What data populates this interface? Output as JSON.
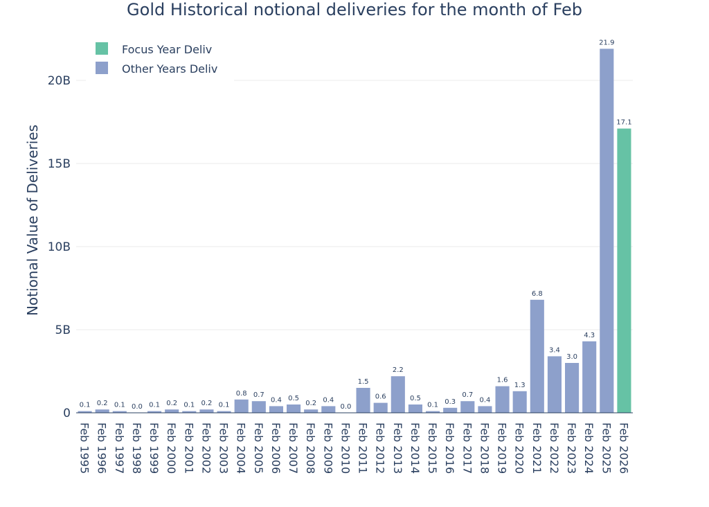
{
  "chart_data": {
    "type": "bar",
    "title": "Gold Historical notional deliveries for the month of Feb",
    "ylabel": "Notional Value of Deliveries",
    "xlabel": "",
    "ylim": [
      0,
      23000000000
    ],
    "yticks": [
      0,
      5000000000,
      10000000000,
      15000000000,
      20000000000
    ],
    "ytick_labels": [
      "0",
      "5B",
      "10B",
      "15B",
      "20B"
    ],
    "grid": true,
    "legend": {
      "placement": "top-left",
      "entries": [
        "Focus Year Deliv",
        "Other Years Deliv"
      ]
    },
    "colors": {
      "focus": "#66c2a5",
      "other": "#8da0cb"
    },
    "categories": [
      "Feb 1995",
      "Feb 1996",
      "Feb 1997",
      "Feb 1998",
      "Feb 1999",
      "Feb 2000",
      "Feb 2001",
      "Feb 2002",
      "Feb 2003",
      "Feb 2004",
      "Feb 2005",
      "Feb 2006",
      "Feb 2007",
      "Feb 2008",
      "Feb 2009",
      "Feb 2010",
      "Feb 2011",
      "Feb 2012",
      "Feb 2013",
      "Feb 2014",
      "Feb 2015",
      "Feb 2016",
      "Feb 2017",
      "Feb 2018",
      "Feb 2019",
      "Feb 2020",
      "Feb 2021",
      "Feb 2022",
      "Feb 2023",
      "Feb 2024",
      "Feb 2025",
      "Feb 2026"
    ],
    "series": [
      {
        "name": "Other Years Deliv",
        "values": [
          0.1,
          0.2,
          0.1,
          0.0,
          0.1,
          0.2,
          0.1,
          0.2,
          0.1,
          0.8,
          0.7,
          0.4,
          0.5,
          0.2,
          0.4,
          0.0,
          1.5,
          0.6,
          2.2,
          0.5,
          0.1,
          0.3,
          0.7,
          0.4,
          1.6,
          1.3,
          6.8,
          3.4,
          3.0,
          4.3,
          21.9,
          null
        ],
        "value_unit": "B"
      },
      {
        "name": "Focus Year Deliv",
        "values": [
          null,
          null,
          null,
          null,
          null,
          null,
          null,
          null,
          null,
          null,
          null,
          null,
          null,
          null,
          null,
          null,
          null,
          null,
          null,
          null,
          null,
          null,
          null,
          null,
          null,
          null,
          null,
          null,
          null,
          null,
          null,
          17.1
        ],
        "value_unit": "B"
      }
    ],
    "data_labels": [
      "0.1",
      "0.2",
      "0.1",
      "0.0",
      "0.1",
      "0.2",
      "0.1",
      "0.2",
      "0.1",
      "0.8",
      "0.7",
      "0.4",
      "0.5",
      "0.2",
      "0.4",
      "0.0",
      "1.5",
      "0.6",
      "2.2",
      "0.5",
      "0.1",
      "0.3",
      "0.7",
      "0.4",
      "1.6",
      "1.3",
      "6.8",
      "3.4",
      "3.0",
      "4.3",
      "21.9",
      "17.1"
    ]
  }
}
